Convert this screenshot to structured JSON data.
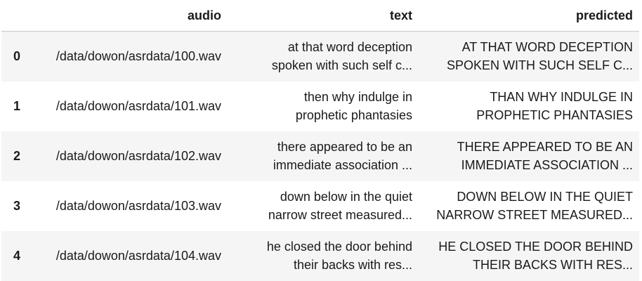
{
  "table": {
    "columns": [
      "",
      "audio",
      "text",
      "predicted"
    ],
    "rows": [
      {
        "index": "0",
        "audio": "/data/dowon/asrdata/100.wav",
        "text": "at that word deception\nspoken with such self c...",
        "predicted": "AT THAT WORD DECEPTION\nSPOKEN WITH SUCH SELF C..."
      },
      {
        "index": "1",
        "audio": "/data/dowon/asrdata/101.wav",
        "text": "then why indulge in\nprophetic phantasies",
        "predicted": "THAN WHY INDULGE IN\nPROPHETIC PHANTASIES"
      },
      {
        "index": "2",
        "audio": "/data/dowon/asrdata/102.wav",
        "text": "there appeared to be an\nimmediate association ...",
        "predicted": "THERE APPEARED TO BE AN\nIMMEDIATE ASSOCIATION ..."
      },
      {
        "index": "3",
        "audio": "/data/dowon/asrdata/103.wav",
        "text": "down below in the quiet\nnarrow street measured...",
        "predicted": "DOWN BELOW IN THE QUIET\nNARROW STREET MEASURED..."
      },
      {
        "index": "4",
        "audio": "/data/dowon/asrdata/104.wav",
        "text": "he closed the door behind\ntheir backs with res...",
        "predicted": "HE CLOSED THE DOOR BEHIND\nTHEIR BACKS WITH RES..."
      }
    ]
  }
}
